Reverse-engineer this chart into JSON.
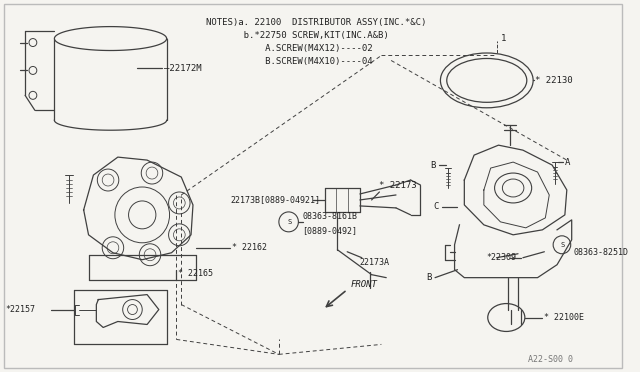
{
  "bg_color": "#f5f4f0",
  "line_color": "#404040",
  "text_color": "#222222",
  "border_color": "#999999",
  "notes_lines": [
    "NOTES)a. 22100  DISTRIBUTOR ASSY(INC.*&C)",
    "       b.*22750 SCREW,KIT(INC.A&B)",
    "           A.SCREW(M4X12)----02",
    "           B.SCREW(M4X10)----04"
  ],
  "footnote": "A22-S00 0"
}
